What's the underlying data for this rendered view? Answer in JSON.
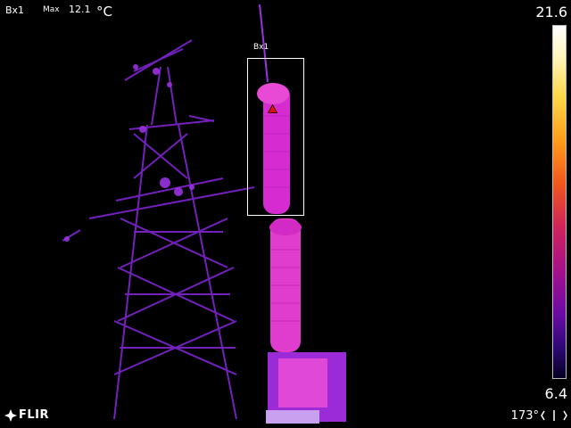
{
  "measurement": {
    "label": "Bx1",
    "type": "Max",
    "value": "12.1",
    "unit": "°C"
  },
  "scale": {
    "max": "21.6",
    "min": "6.4",
    "palette": "iron"
  },
  "roi": {
    "label": "Bx1"
  },
  "branding": {
    "logo_text": "FLIR"
  },
  "compass": {
    "heading": "173°"
  },
  "colors": {
    "background": "#000000",
    "insulator_hot": "#e83ad0",
    "tower_cold": "#8a2bd6",
    "hotspot": "#e01010"
  }
}
